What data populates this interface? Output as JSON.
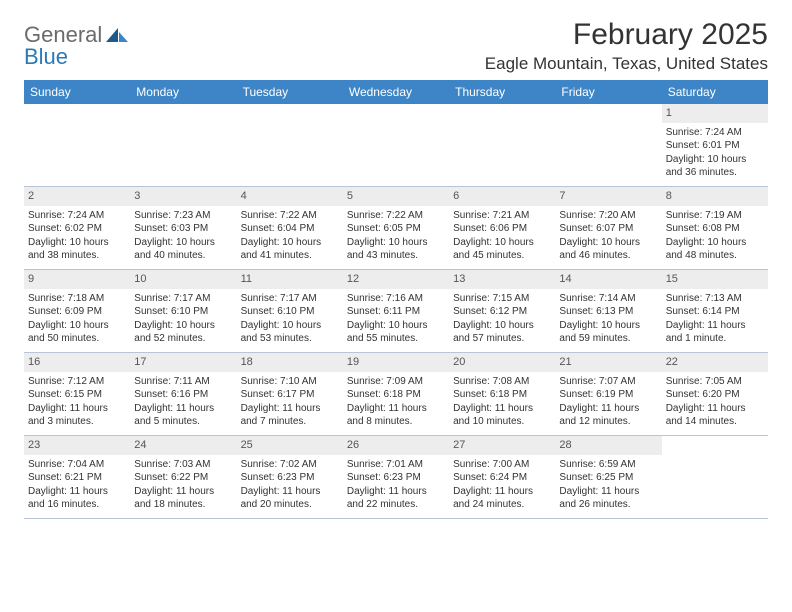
{
  "brand": {
    "name_part1": "General",
    "name_part2": "Blue"
  },
  "title": "February 2025",
  "location": "Eagle Mountain, Texas, United States",
  "colors": {
    "header_bg": "#3d85c6",
    "header_fg": "#ffffff",
    "daynum_bg": "#ededed",
    "brand_gray": "#6b6b6b",
    "brand_blue": "#2a7ab8",
    "row_border": "#b8c5d6"
  },
  "day_headers": [
    "Sunday",
    "Monday",
    "Tuesday",
    "Wednesday",
    "Thursday",
    "Friday",
    "Saturday"
  ],
  "weeks": [
    [
      {
        "n": "",
        "empty": true
      },
      {
        "n": "",
        "empty": true
      },
      {
        "n": "",
        "empty": true
      },
      {
        "n": "",
        "empty": true
      },
      {
        "n": "",
        "empty": true
      },
      {
        "n": "",
        "empty": true
      },
      {
        "n": "1",
        "sunrise": "Sunrise: 7:24 AM",
        "sunset": "Sunset: 6:01 PM",
        "daylight": "Daylight: 10 hours and 36 minutes."
      }
    ],
    [
      {
        "n": "2",
        "sunrise": "Sunrise: 7:24 AM",
        "sunset": "Sunset: 6:02 PM",
        "daylight": "Daylight: 10 hours and 38 minutes."
      },
      {
        "n": "3",
        "sunrise": "Sunrise: 7:23 AM",
        "sunset": "Sunset: 6:03 PM",
        "daylight": "Daylight: 10 hours and 40 minutes."
      },
      {
        "n": "4",
        "sunrise": "Sunrise: 7:22 AM",
        "sunset": "Sunset: 6:04 PM",
        "daylight": "Daylight: 10 hours and 41 minutes."
      },
      {
        "n": "5",
        "sunrise": "Sunrise: 7:22 AM",
        "sunset": "Sunset: 6:05 PM",
        "daylight": "Daylight: 10 hours and 43 minutes."
      },
      {
        "n": "6",
        "sunrise": "Sunrise: 7:21 AM",
        "sunset": "Sunset: 6:06 PM",
        "daylight": "Daylight: 10 hours and 45 minutes."
      },
      {
        "n": "7",
        "sunrise": "Sunrise: 7:20 AM",
        "sunset": "Sunset: 6:07 PM",
        "daylight": "Daylight: 10 hours and 46 minutes."
      },
      {
        "n": "8",
        "sunrise": "Sunrise: 7:19 AM",
        "sunset": "Sunset: 6:08 PM",
        "daylight": "Daylight: 10 hours and 48 minutes."
      }
    ],
    [
      {
        "n": "9",
        "sunrise": "Sunrise: 7:18 AM",
        "sunset": "Sunset: 6:09 PM",
        "daylight": "Daylight: 10 hours and 50 minutes."
      },
      {
        "n": "10",
        "sunrise": "Sunrise: 7:17 AM",
        "sunset": "Sunset: 6:10 PM",
        "daylight": "Daylight: 10 hours and 52 minutes."
      },
      {
        "n": "11",
        "sunrise": "Sunrise: 7:17 AM",
        "sunset": "Sunset: 6:10 PM",
        "daylight": "Daylight: 10 hours and 53 minutes."
      },
      {
        "n": "12",
        "sunrise": "Sunrise: 7:16 AM",
        "sunset": "Sunset: 6:11 PM",
        "daylight": "Daylight: 10 hours and 55 minutes."
      },
      {
        "n": "13",
        "sunrise": "Sunrise: 7:15 AM",
        "sunset": "Sunset: 6:12 PM",
        "daylight": "Daylight: 10 hours and 57 minutes."
      },
      {
        "n": "14",
        "sunrise": "Sunrise: 7:14 AM",
        "sunset": "Sunset: 6:13 PM",
        "daylight": "Daylight: 10 hours and 59 minutes."
      },
      {
        "n": "15",
        "sunrise": "Sunrise: 7:13 AM",
        "sunset": "Sunset: 6:14 PM",
        "daylight": "Daylight: 11 hours and 1 minute."
      }
    ],
    [
      {
        "n": "16",
        "sunrise": "Sunrise: 7:12 AM",
        "sunset": "Sunset: 6:15 PM",
        "daylight": "Daylight: 11 hours and 3 minutes."
      },
      {
        "n": "17",
        "sunrise": "Sunrise: 7:11 AM",
        "sunset": "Sunset: 6:16 PM",
        "daylight": "Daylight: 11 hours and 5 minutes."
      },
      {
        "n": "18",
        "sunrise": "Sunrise: 7:10 AM",
        "sunset": "Sunset: 6:17 PM",
        "daylight": "Daylight: 11 hours and 7 minutes."
      },
      {
        "n": "19",
        "sunrise": "Sunrise: 7:09 AM",
        "sunset": "Sunset: 6:18 PM",
        "daylight": "Daylight: 11 hours and 8 minutes."
      },
      {
        "n": "20",
        "sunrise": "Sunrise: 7:08 AM",
        "sunset": "Sunset: 6:18 PM",
        "daylight": "Daylight: 11 hours and 10 minutes."
      },
      {
        "n": "21",
        "sunrise": "Sunrise: 7:07 AM",
        "sunset": "Sunset: 6:19 PM",
        "daylight": "Daylight: 11 hours and 12 minutes."
      },
      {
        "n": "22",
        "sunrise": "Sunrise: 7:05 AM",
        "sunset": "Sunset: 6:20 PM",
        "daylight": "Daylight: 11 hours and 14 minutes."
      }
    ],
    [
      {
        "n": "23",
        "sunrise": "Sunrise: 7:04 AM",
        "sunset": "Sunset: 6:21 PM",
        "daylight": "Daylight: 11 hours and 16 minutes."
      },
      {
        "n": "24",
        "sunrise": "Sunrise: 7:03 AM",
        "sunset": "Sunset: 6:22 PM",
        "daylight": "Daylight: 11 hours and 18 minutes."
      },
      {
        "n": "25",
        "sunrise": "Sunrise: 7:02 AM",
        "sunset": "Sunset: 6:23 PM",
        "daylight": "Daylight: 11 hours and 20 minutes."
      },
      {
        "n": "26",
        "sunrise": "Sunrise: 7:01 AM",
        "sunset": "Sunset: 6:23 PM",
        "daylight": "Daylight: 11 hours and 22 minutes."
      },
      {
        "n": "27",
        "sunrise": "Sunrise: 7:00 AM",
        "sunset": "Sunset: 6:24 PM",
        "daylight": "Daylight: 11 hours and 24 minutes."
      },
      {
        "n": "28",
        "sunrise": "Sunrise: 6:59 AM",
        "sunset": "Sunset: 6:25 PM",
        "daylight": "Daylight: 11 hours and 26 minutes."
      },
      {
        "n": "",
        "empty": true
      }
    ]
  ]
}
